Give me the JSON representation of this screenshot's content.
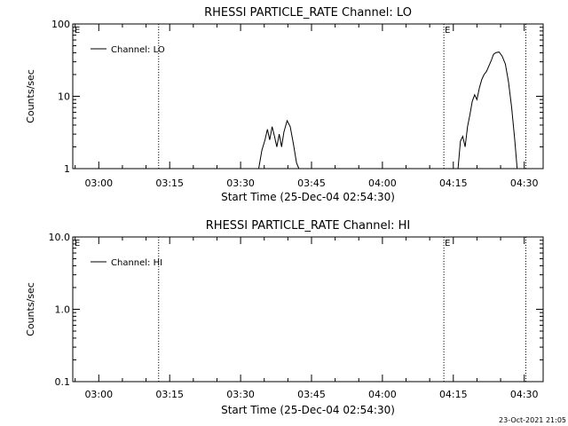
{
  "footer_timestamp": "23-Oct-2021 21:05",
  "chart_data": [
    {
      "type": "line",
      "title": "RHESSI PARTICLE_RATE Channel: LO",
      "xlabel": "Start Time (25-Dec-04 02:54:30)",
      "ylabel": "Counts/sec",
      "yscale": "log",
      "ylim": [
        1,
        100
      ],
      "xlim": [
        "02:54:30",
        "04:34:00"
      ],
      "x_ticks": [
        "03:00",
        "03:15",
        "03:30",
        "03:45",
        "04:00",
        "04:15",
        "04:30"
      ],
      "y_ticks": [
        "1",
        "10",
        "100"
      ],
      "legend": {
        "label": "Channel: LO",
        "placement": "top-left"
      },
      "markers": [
        {
          "time": "03:12:40",
          "label": "E",
          "label_side": "right"
        },
        {
          "time": "04:13:00",
          "label": "E",
          "label_side": "left"
        },
        {
          "time": "04:30:20",
          "label": "",
          "label_side": "none"
        }
      ],
      "marker_start_label": "E",
      "grid": false,
      "series": [
        {
          "name": "Channel: LO",
          "segments": [
            [
              [
                "03:33:50",
                1.0
              ],
              [
                "03:34:30",
                1.8
              ],
              [
                "03:35:10",
                2.5
              ],
              [
                "03:35:40",
                3.5
              ],
              [
                "03:36:10",
                2.5
              ],
              [
                "03:36:40",
                3.8
              ],
              [
                "03:37:10",
                2.8
              ],
              [
                "03:37:40",
                2.0
              ],
              [
                "03:38:10",
                3.0
              ],
              [
                "03:38:40",
                2.0
              ],
              [
                "03:39:10",
                3.2
              ],
              [
                "03:39:50",
                4.6
              ],
              [
                "03:40:30",
                3.8
              ],
              [
                "03:41:10",
                2.2
              ],
              [
                "03:41:50",
                1.2
              ],
              [
                "03:42:20",
                1.0
              ]
            ],
            [
              [
                "04:16:00",
                1.0
              ],
              [
                "04:16:30",
                2.4
              ],
              [
                "04:17:00",
                2.8
              ],
              [
                "04:17:30",
                2.0
              ],
              [
                "04:18:00",
                3.8
              ],
              [
                "04:18:30",
                5.5
              ],
              [
                "04:19:00",
                8.5
              ],
              [
                "04:19:30",
                10.5
              ],
              [
                "04:20:00",
                9.0
              ],
              [
                "04:20:30",
                13.0
              ],
              [
                "04:21:00",
                17.0
              ],
              [
                "04:21:30",
                20.0
              ],
              [
                "04:22:00",
                22.0
              ],
              [
                "04:22:30",
                26.0
              ],
              [
                "04:23:00",
                31.0
              ],
              [
                "04:23:30",
                38.0
              ],
              [
                "04:24:00",
                40.0
              ],
              [
                "04:24:40",
                41.0
              ],
              [
                "04:25:20",
                36.0
              ],
              [
                "04:26:00",
                28.0
              ],
              [
                "04:26:40",
                16.0
              ],
              [
                "04:27:20",
                7.0
              ],
              [
                "04:28:00",
                2.5
              ],
              [
                "04:28:30",
                1.0
              ]
            ]
          ]
        }
      ]
    },
    {
      "type": "line",
      "title": "RHESSI PARTICLE_RATE Channel: HI",
      "xlabel": "Start Time (25-Dec-04 02:54:30)",
      "ylabel": "Counts/sec",
      "yscale": "log",
      "ylim": [
        0.1,
        10
      ],
      "xlim": [
        "02:54:30",
        "04:34:00"
      ],
      "x_ticks": [
        "03:00",
        "03:15",
        "03:30",
        "03:45",
        "04:00",
        "04:15",
        "04:30"
      ],
      "y_ticks": [
        "0.1",
        "1.0",
        "10.0"
      ],
      "legend": {
        "label": "Channel: HI",
        "placement": "top-left"
      },
      "markers": [
        {
          "time": "03:12:40",
          "label": "E",
          "label_side": "right"
        },
        {
          "time": "04:13:00",
          "label": "E",
          "label_side": "left"
        },
        {
          "time": "04:30:20",
          "label": "",
          "label_side": "none"
        }
      ],
      "marker_start_label": "E",
      "grid": false,
      "series": [
        {
          "name": "Channel: HI",
          "segments": []
        }
      ]
    }
  ]
}
